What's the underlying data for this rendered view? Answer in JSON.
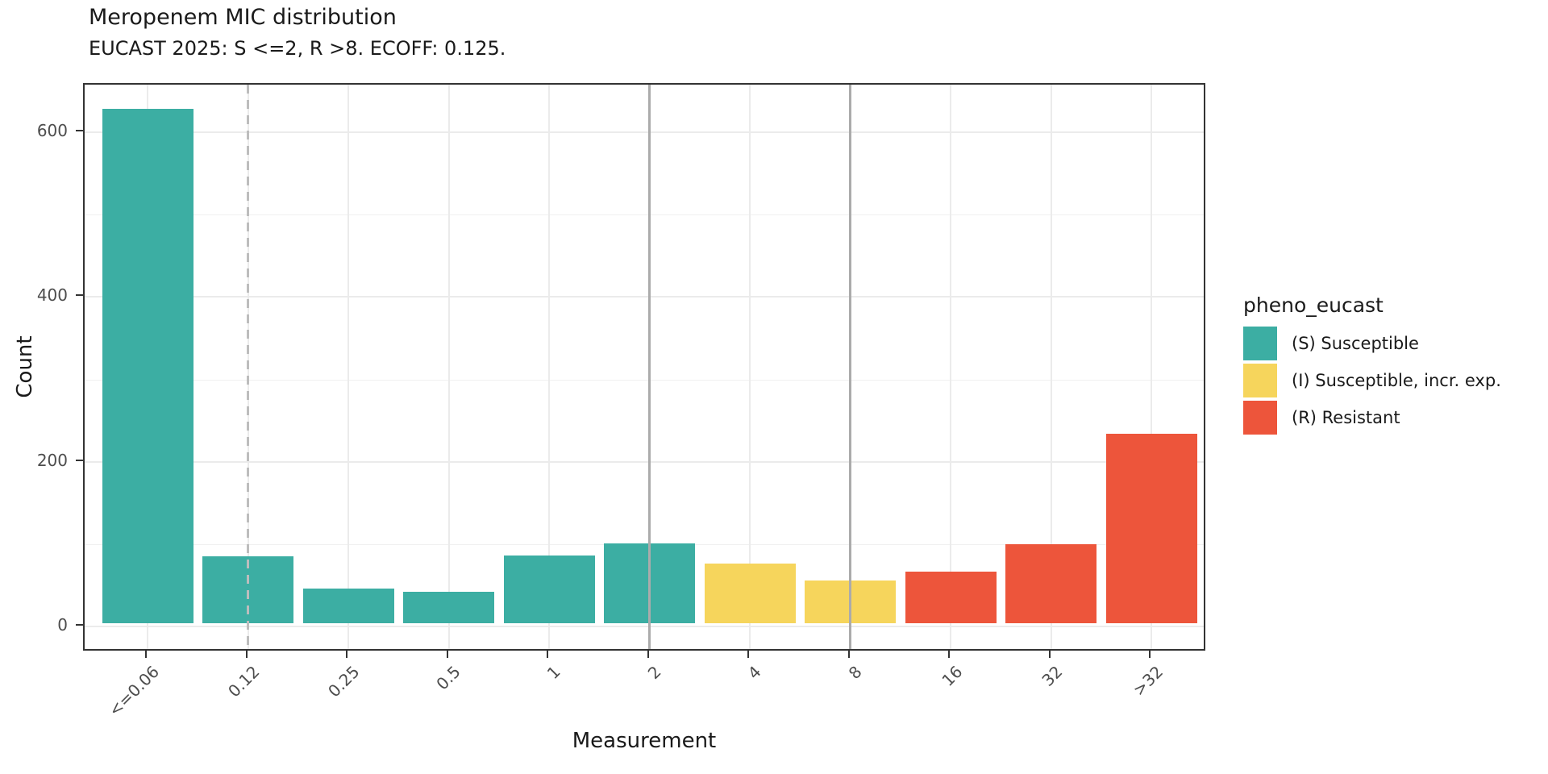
{
  "title": "Meropenem MIC distribution",
  "subtitle": "EUCAST 2025: S <=2, R >8. ECOFF: 0.125.",
  "chart_data": {
    "type": "bar",
    "title": "Meropenem MIC distribution",
    "subtitle": "EUCAST 2025: S <=2, R >8. ECOFF: 0.125.",
    "xlabel": "Measurement",
    "ylabel": "Count",
    "categories": [
      "<=0.06",
      "0.12",
      "0.25",
      "0.5",
      "1",
      "2",
      "4",
      "8",
      "16",
      "32",
      ">32"
    ],
    "values": [
      625,
      81,
      42,
      38,
      82,
      97,
      72,
      52,
      63,
      96,
      230
    ],
    "phenotype_per_bar": [
      "S",
      "S",
      "S",
      "S",
      "S",
      "S",
      "I",
      "I",
      "R",
      "R",
      "R"
    ],
    "ylim": [
      0,
      658
    ],
    "yticks": [
      0,
      200,
      400,
      600
    ],
    "yminor": [
      100,
      300,
      500
    ],
    "grid": true,
    "legend_position": "right",
    "vlines": [
      {
        "category": "0.12",
        "style": "dashed"
      },
      {
        "category": "2",
        "style": "solid"
      },
      {
        "category": "8",
        "style": "solid"
      }
    ]
  },
  "legend": {
    "title": "pheno_eucast",
    "items": [
      {
        "key": "S",
        "label": "(S) Susceptible",
        "color": "#3CAEA3"
      },
      {
        "key": "I",
        "label": "(I) Susceptible, incr. exp.",
        "color": "#F6D55C"
      },
      {
        "key": "R",
        "label": "(R) Resistant",
        "color": "#ED553B"
      }
    ]
  },
  "colors": {
    "S": "#3CAEA3",
    "I": "#F6D55C",
    "R": "#ED553B",
    "grid": "#EBEBEB",
    "vline_solid": "#ABABAB",
    "vline_dashed": "#BDBDBD",
    "axis_text": "#4D4D4D",
    "text": "#1A1A1A",
    "panel_border": "#333333"
  }
}
